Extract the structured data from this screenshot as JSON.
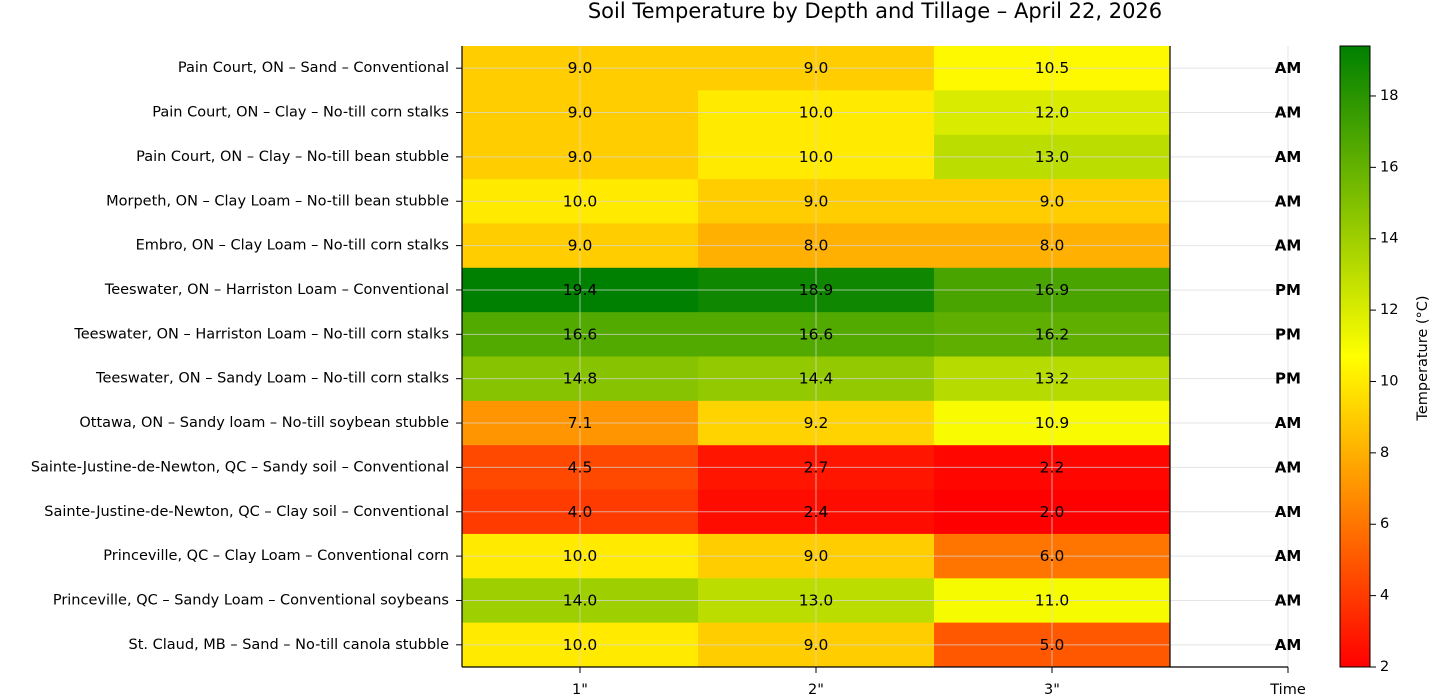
{
  "chart_data": {
    "type": "heatmap",
    "title": "Soil Temperature by Depth and Tillage – April 22, 2026",
    "x_categories": [
      "1\"",
      "2\"",
      "3\""
    ],
    "extra_column_label": "Time",
    "rows": [
      {
        "label": "Pain Court, ON – Sand – Conventional",
        "values": [
          9.0,
          9.0,
          10.5
        ],
        "time": "AM"
      },
      {
        "label": "Pain Court, ON – Clay – No-till corn stalks",
        "values": [
          9.0,
          10.0,
          12.0
        ],
        "time": "AM"
      },
      {
        "label": "Pain Court, ON – Clay – No-till bean stubble",
        "values": [
          9.0,
          10.0,
          13.0
        ],
        "time": "AM"
      },
      {
        "label": "Morpeth, ON – Clay Loam – No-till bean stubble",
        "values": [
          10.0,
          9.0,
          9.0
        ],
        "time": "AM"
      },
      {
        "label": "Embro, ON – Clay Loam – No-till corn stalks",
        "values": [
          9.0,
          8.0,
          8.0
        ],
        "time": "AM"
      },
      {
        "label": "Teeswater, ON – Harriston Loam – Conventional",
        "values": [
          19.4,
          18.9,
          16.9
        ],
        "time": "PM"
      },
      {
        "label": "Teeswater, ON – Harriston Loam – No-till corn stalks",
        "values": [
          16.6,
          16.6,
          16.2
        ],
        "time": "PM"
      },
      {
        "label": "Teeswater, ON – Sandy Loam – No-till corn stalks",
        "values": [
          14.8,
          14.4,
          13.2
        ],
        "time": "PM"
      },
      {
        "label": "Ottawa, ON – Sandy loam – No-till soybean stubble",
        "values": [
          7.1,
          9.2,
          10.9
        ],
        "time": "AM"
      },
      {
        "label": "Sainte-Justine-de-Newton, QC – Sandy soil – Conventional",
        "values": [
          4.5,
          2.7,
          2.2
        ],
        "time": "AM"
      },
      {
        "label": "Sainte-Justine-de-Newton, QC – Clay soil – Conventional",
        "values": [
          4.0,
          2.4,
          2.0
        ],
        "time": "AM"
      },
      {
        "label": "Princeville, QC – Clay Loam – Conventional corn",
        "values": [
          10.0,
          9.0,
          6.0
        ],
        "time": "AM"
      },
      {
        "label": "Princeville, QC – Sandy Loam – Conventional soybeans",
        "values": [
          14.0,
          13.0,
          11.0
        ],
        "time": "AM"
      },
      {
        "label": "St. Claud, MB – Sand – No-till canola stubble",
        "values": [
          10.0,
          9.0,
          5.0
        ],
        "time": "AM"
      }
    ],
    "colorbar": {
      "label": "Temperature (°C)",
      "range": [
        2.0,
        19.4
      ],
      "ticks": [
        2,
        4,
        6,
        8,
        10,
        12,
        14,
        16,
        18
      ],
      "colors": [
        "#ff0000",
        "#ffff00",
        "#008000"
      ]
    },
    "grid": true,
    "value_format_decimals": 1
  }
}
